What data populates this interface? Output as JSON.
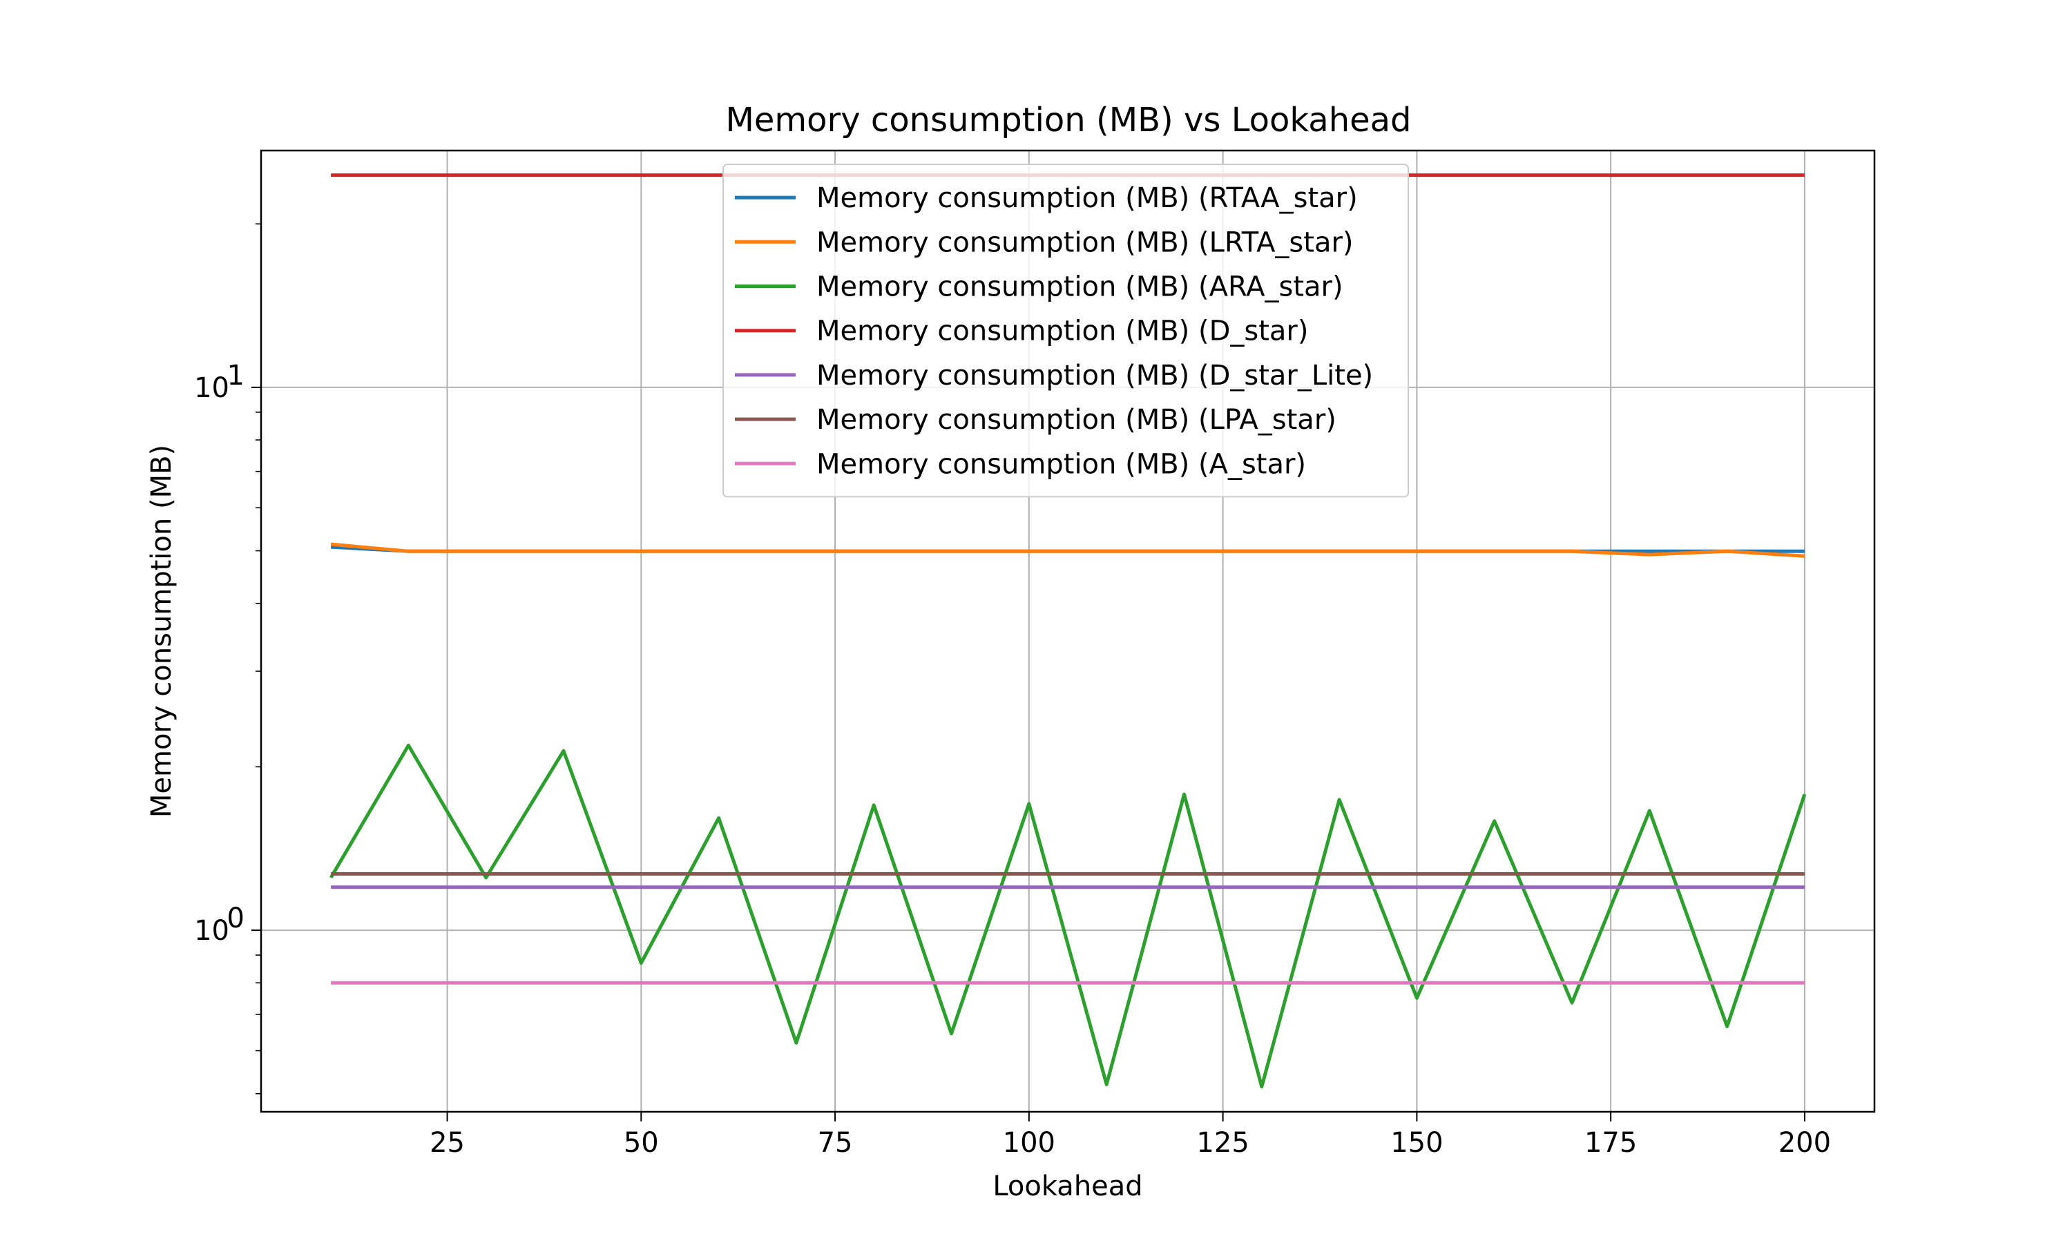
{
  "chart_data": {
    "type": "line",
    "title": "Memory consumption (MB) vs Lookahead",
    "xlabel": "Lookahead",
    "ylabel": "Memory consumption (MB)",
    "xlim": [
      1,
      209
    ],
    "ylim": [
      0.463,
      27.3
    ],
    "yscale": "log",
    "grid": true,
    "legend_position": "upper center",
    "x_ticks": [
      25,
      50,
      75,
      100,
      125,
      150,
      175,
      200
    ],
    "y_ticks": [
      {
        "value": 1,
        "base": "10",
        "exp": "0"
      },
      {
        "value": 10,
        "base": "10",
        "exp": "1"
      }
    ],
    "x": [
      10,
      20,
      30,
      40,
      50,
      60,
      70,
      80,
      90,
      100,
      110,
      120,
      130,
      140,
      150,
      160,
      170,
      180,
      190,
      200
    ],
    "series": [
      {
        "name": "Memory consumption (MB) (RTAA_star)",
        "color": "#1f77b4",
        "values": [
          5.08,
          4.99,
          4.99,
          4.99,
          4.99,
          4.99,
          4.99,
          4.99,
          4.99,
          4.99,
          4.99,
          4.99,
          4.99,
          4.99,
          4.99,
          4.99,
          4.99,
          4.99,
          4.99,
          4.99
        ]
      },
      {
        "name": "Memory consumption (MB) (LRTA_star)",
        "color": "#ff7f0e",
        "values": [
          5.14,
          4.99,
          4.99,
          4.99,
          4.99,
          4.99,
          4.99,
          4.99,
          4.99,
          4.99,
          4.99,
          4.99,
          4.99,
          4.99,
          4.99,
          4.99,
          4.99,
          4.92,
          4.99,
          4.89
        ]
      },
      {
        "name": "Memory consumption (MB) (ARA_star)",
        "color": "#2ca02c",
        "values": [
          1.25,
          2.19,
          1.25,
          2.14,
          0.87,
          1.61,
          0.62,
          1.7,
          0.645,
          1.71,
          0.52,
          1.78,
          0.515,
          1.74,
          0.75,
          1.59,
          0.735,
          1.66,
          0.665,
          1.78
        ]
      },
      {
        "name": "Memory consumption (MB) (D_star)",
        "color": "#d62728",
        "values": [
          24.6,
          24.6,
          24.6,
          24.6,
          24.6,
          24.6,
          24.6,
          24.6,
          24.6,
          24.6,
          24.6,
          24.6,
          24.6,
          24.6,
          24.6,
          24.6,
          24.6,
          24.6,
          24.6,
          24.6
        ]
      },
      {
        "name": "Memory consumption (MB) (D_star_Lite)",
        "color": "#9467bd",
        "values": [
          1.2,
          1.2,
          1.2,
          1.2,
          1.2,
          1.2,
          1.2,
          1.2,
          1.2,
          1.2,
          1.2,
          1.2,
          1.2,
          1.2,
          1.2,
          1.2,
          1.2,
          1.2,
          1.2,
          1.2
        ]
      },
      {
        "name": "Memory consumption (MB) (LPA_star)",
        "color": "#8c564b",
        "values": [
          1.27,
          1.27,
          1.27,
          1.27,
          1.27,
          1.27,
          1.27,
          1.27,
          1.27,
          1.27,
          1.27,
          1.27,
          1.27,
          1.27,
          1.27,
          1.27,
          1.27,
          1.27,
          1.27,
          1.27
        ]
      },
      {
        "name": "Memory consumption (MB) (A_star)",
        "color": "#e377c2",
        "values": [
          0.8,
          0.8,
          0.8,
          0.8,
          0.8,
          0.8,
          0.8,
          0.8,
          0.8,
          0.8,
          0.8,
          0.8,
          0.8,
          0.8,
          0.8,
          0.8,
          0.8,
          0.8,
          0.8,
          0.8
        ]
      }
    ]
  }
}
